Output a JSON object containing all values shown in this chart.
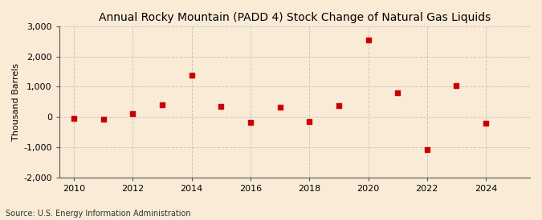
{
  "title": "Annual Rocky Mountain (PADD 4) Stock Change of Natural Gas Liquids",
  "ylabel": "Thousand Barrels",
  "source": "Source: U.S. Energy Information Administration",
  "background_color": "#faebd7",
  "marker_color": "#cc0000",
  "years": [
    2010,
    2011,
    2012,
    2013,
    2014,
    2015,
    2016,
    2017,
    2018,
    2019,
    2020,
    2021,
    2022,
    2023,
    2024
  ],
  "values": [
    -55,
    -80,
    100,
    410,
    1390,
    350,
    -175,
    325,
    -150,
    375,
    2545,
    795,
    -1075,
    1045,
    -205
  ],
  "ylim": [
    -2000,
    3000
  ],
  "xlim": [
    2009.5,
    2025.5
  ],
  "yticks": [
    -2000,
    -1000,
    0,
    1000,
    2000,
    3000
  ],
  "xticks": [
    2010,
    2012,
    2014,
    2016,
    2018,
    2020,
    2022,
    2024
  ],
  "title_fontsize": 10,
  "axis_fontsize": 8,
  "source_fontsize": 7
}
